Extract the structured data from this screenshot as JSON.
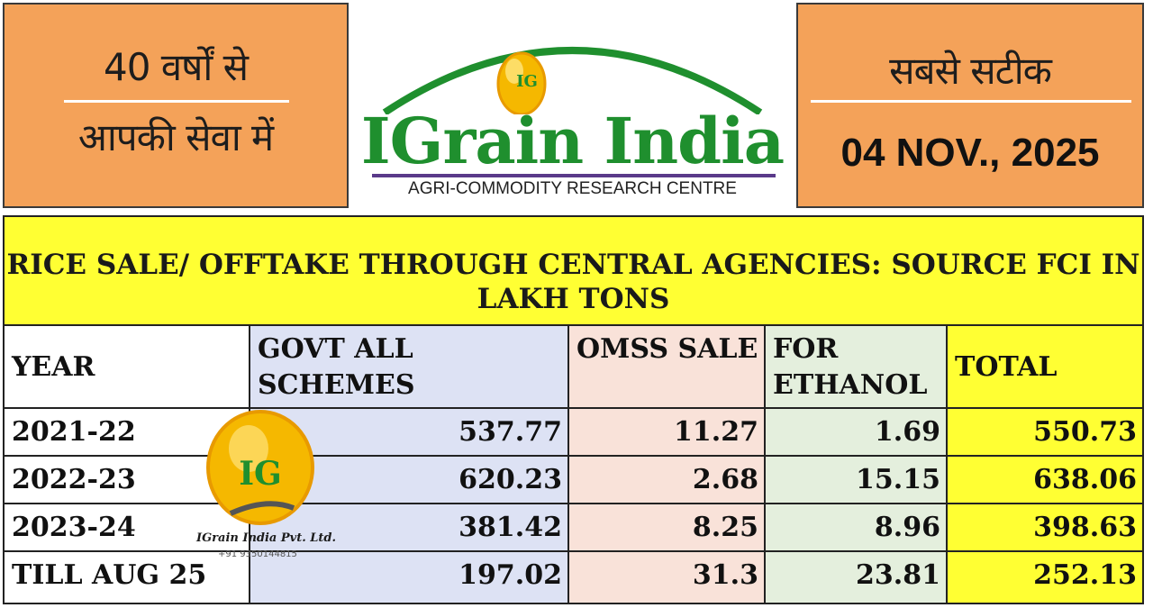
{
  "header": {
    "left_line1": "40 वर्षों से",
    "left_line2": "आपकी सेवा में",
    "right_line1": "सबसे सटीक",
    "right_date": "04 NOV., 2025",
    "logo_wordmark": "IGrain India",
    "logo_badge": "IG",
    "logo_subtitle": "AGRI-COMMODITY RESEARCH CENTRE",
    "colors": {
      "panel": "#f4a259",
      "logo_green": "#1f8f2e",
      "accent_purple": "#5a3a8a",
      "badge_gold": "#f5b800"
    }
  },
  "table": {
    "title": "RICE SALE/ OFFTAKE THROUGH CENTRAL AGENCIES: SOURCE FCI IN LAKH TONS",
    "columns": [
      {
        "key": "year",
        "label": "YEAR"
      },
      {
        "key": "govt",
        "label": "GOVT ALL SCHEMES"
      },
      {
        "key": "omss",
        "label": "OMSS SALE"
      },
      {
        "key": "ethanol",
        "label": "FOR ETHANOL"
      },
      {
        "key": "total",
        "label": "TOTAL"
      }
    ],
    "rows": [
      {
        "year": "2021-22",
        "govt": "537.77",
        "omss": "11.27",
        "ethanol": "1.69",
        "total": "550.73"
      },
      {
        "year": "2022-23",
        "govt": "620.23",
        "omss": "2.68",
        "ethanol": "15.15",
        "total": "638.06"
      },
      {
        "year": "2023-24",
        "govt": "381.42",
        "omss": "8.25",
        "ethanol": "8.96",
        "total": "398.63"
      },
      {
        "year": "TILL AUG 25",
        "govt": "197.02",
        "omss": "31.3",
        "ethanol": "23.81",
        "total": "252.13"
      }
    ],
    "colors": {
      "title_band": "#ffff33",
      "govt": "#dde2f4",
      "omss": "#f9e2d9",
      "ethanol": "#e4efdd",
      "total": "#ffff33"
    }
  },
  "watermark": {
    "badge": "IG",
    "company": "IGrain India Pvt. Ltd.",
    "phone": "+91 9350144815"
  }
}
